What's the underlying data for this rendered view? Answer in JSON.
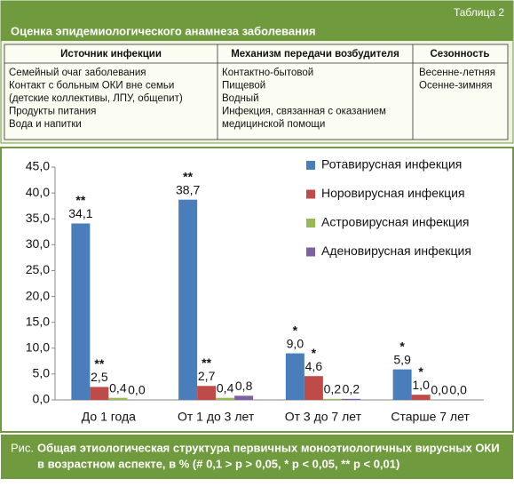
{
  "header": {
    "label": "Таблица 2",
    "title": "Оценка эпидемиологического анамнеза заболевания"
  },
  "table": {
    "columns": [
      "Источник инфекции",
      "Механизм передачи возбудителя",
      "Сезонность"
    ],
    "cells": [
      [
        "Семейный очаг заболевания",
        "Контакт с больным ОКИ вне семьи",
        "(детские коллективы, ЛПУ, общепит)",
        "Продукты питания",
        "Вода и напитки"
      ],
      [
        "Контактно-бытовой",
        "Пищевой",
        "Водный",
        "Инфекция, связанная с оказанием",
        "медицинской помощи"
      ],
      [
        "Весенне-летняя",
        "Осенне-зимняя"
      ]
    ]
  },
  "chart_data": {
    "type": "bar",
    "categories": [
      "До 1 года",
      "От 1 до 3 лет",
      "От 3 до 7 лет",
      "Старше 7 лет"
    ],
    "series": [
      {
        "name": "Ротавирусная инфекция",
        "color": "#4a7ebb",
        "values": [
          34.1,
          38.7,
          9.0,
          5.9
        ],
        "value_labels": [
          "34,1",
          "38,7",
          "9,0",
          "5,9"
        ],
        "markers": [
          "**",
          "**",
          "*",
          "*"
        ]
      },
      {
        "name": "Норовирусная инфекция",
        "color": "#be4b48",
        "values": [
          2.5,
          2.7,
          4.6,
          1.0
        ],
        "value_labels": [
          "2,5",
          "2,7",
          "4,6",
          "1,0"
        ],
        "markers": [
          "**",
          "**",
          "*",
          "*"
        ]
      },
      {
        "name": "Астровирусная инфекция",
        "color": "#98b954",
        "values": [
          0.4,
          0.4,
          0.2,
          0.0
        ],
        "value_labels": [
          "0,4",
          "0,4",
          "0,2",
          "0,0"
        ]
      },
      {
        "name": "Аденовирусная инфекция",
        "color": "#7d60a0",
        "values": [
          0.0,
          0.8,
          0.2,
          0.0
        ],
        "value_labels": [
          "0,0",
          "0,8",
          "0,2",
          "0,0"
        ]
      }
    ],
    "ylim": [
      0,
      45
    ],
    "yticks": [
      {
        "value": 0,
        "label": "0,0"
      },
      {
        "value": 5,
        "label": "5,0"
      },
      {
        "value": 10,
        "label": "10,0"
      },
      {
        "value": 15,
        "label": "15,0"
      },
      {
        "value": 20,
        "label": "20,0"
      },
      {
        "value": 25,
        "label": "25,0"
      },
      {
        "value": 30,
        "label": "30,0"
      },
      {
        "value": 35,
        "label": "35,0"
      },
      {
        "value": 40,
        "label": "40,0"
      },
      {
        "value": 45,
        "label": "45,0"
      }
    ],
    "grid": false,
    "legend": "top-right"
  },
  "caption": {
    "label": "Рис.",
    "lines": [
      "Общая этиологическая структура первичных моноэтиологичных вирусных ОКИ",
      "в возрастном аспекте, в % (# 0,1 > p > 0,05, * p < 0,05, ** p < 0,01)"
    ]
  }
}
